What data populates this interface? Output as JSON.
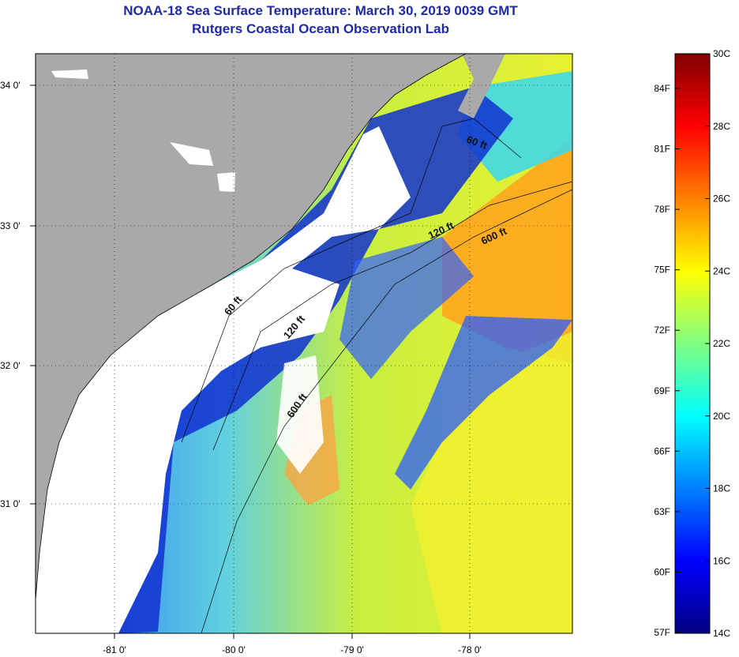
{
  "header": {
    "title": "NOAA-18 Sea Surface Temperature:  March 30, 2019 0039 GMT",
    "subtitle": "Rutgers Coastal Ocean Observation Lab"
  },
  "map": {
    "lat_ticks": [
      "34 0'",
      "33 0'",
      "32 0'",
      "31 0'"
    ],
    "lon_ticks": [
      "-81 0'",
      "-80 0'",
      "-79 0'",
      "-78 0'"
    ],
    "contours": [
      {
        "label": "60 ft"
      },
      {
        "label": "120 ft"
      },
      {
        "label": "600 ft"
      },
      {
        "label": "60 ft"
      },
      {
        "label": "120 ft"
      },
      {
        "label": "600 ft"
      }
    ],
    "colors": {
      "land": "#a9a9a9",
      "cloud": "#ffffff"
    }
  },
  "colorbar": {
    "fahrenheit": [
      "84F",
      "81F",
      "78F",
      "75F",
      "72F",
      "69F",
      "66F",
      "63F",
      "60F",
      "57F"
    ],
    "celsius": [
      "30C",
      "28C",
      "26C",
      "24C",
      "22C",
      "20C",
      "18C",
      "16C",
      "14C"
    ],
    "colors": [
      "#000080",
      "#0000ff",
      "#0080ff",
      "#00ffff",
      "#80ff80",
      "#ffff00",
      "#ff8000",
      "#ff0000",
      "#800000"
    ]
  }
}
